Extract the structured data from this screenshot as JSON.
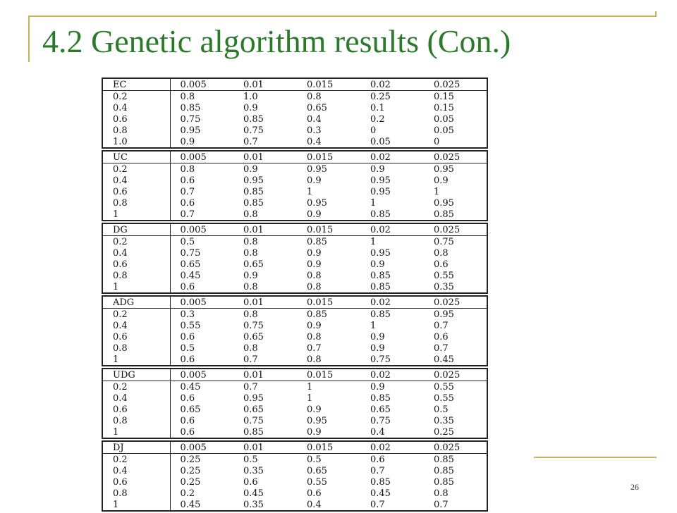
{
  "slide": {
    "title": "4.2 Genetic algorithm results (Con.)",
    "page_number": "26"
  },
  "tables": [
    {
      "header": [
        "EC",
        "0.005",
        "0.01",
        "0.015",
        "0.02",
        "0.025"
      ],
      "rows": [
        [
          "0.2",
          "0.8",
          "1.0",
          "0.8",
          "0.25",
          "0.15"
        ],
        [
          "0.4",
          "0.85",
          "0.9",
          "0.65",
          "0.1",
          "0.15"
        ],
        [
          "0.6",
          "0.75",
          "0.85",
          "0.4",
          "0.2",
          "0.05"
        ],
        [
          "0.8",
          "0.95",
          "0.75",
          "0.3",
          "0",
          "0.05"
        ],
        [
          "1.0",
          "0.9",
          "0.7",
          "0.4",
          "0.05",
          "0"
        ]
      ]
    },
    {
      "header": [
        "UC",
        "0.005",
        "0.01",
        "0.015",
        "0.02",
        "0.025"
      ],
      "rows": [
        [
          "0.2",
          "0.8",
          "0.9",
          "0.95",
          "0.9",
          "0.95"
        ],
        [
          "0.4",
          "0.6",
          "0.95",
          "0.9",
          "0.95",
          "0.9"
        ],
        [
          "0.6",
          "0.7",
          "0.85",
          "1",
          "0.95",
          "1"
        ],
        [
          "0.8",
          "0.6",
          "0.85",
          "0.95",
          "1",
          "0.95"
        ],
        [
          "1",
          "0.7",
          "0.8",
          "0.9",
          "0.85",
          "0.85"
        ]
      ]
    },
    {
      "header": [
        "DG",
        "0.005",
        "0.01",
        "0.015",
        "0.02",
        "0.025"
      ],
      "rows": [
        [
          "0.2",
          "0.5",
          "0.8",
          "0.85",
          "1",
          "0.75"
        ],
        [
          "0.4",
          "0.75",
          "0.8",
          "0.9",
          "0.95",
          "0.8"
        ],
        [
          "0.6",
          "0.65",
          "0.65",
          "0.9",
          "0.9",
          "0.6"
        ],
        [
          "0.8",
          "0.45",
          "0.9",
          "0.8",
          "0.85",
          "0.55"
        ],
        [
          "1",
          "0.6",
          "0.8",
          "0.8",
          "0.85",
          "0.35"
        ]
      ]
    },
    {
      "header": [
        "ADG",
        "0.005",
        "0.01",
        "0.015",
        "0.02",
        "0.025"
      ],
      "rows": [
        [
          "0.2",
          "0.3",
          "0.8",
          "0.85",
          "0.85",
          "0.95"
        ],
        [
          "0.4",
          "0.55",
          "0.75",
          "0.9",
          "1",
          "0.7"
        ],
        [
          "0.6",
          "0.6",
          "0.65",
          "0.8",
          "0.9",
          "0.6"
        ],
        [
          "0.8",
          "0.5",
          "0.8",
          "0.7",
          "0.9",
          "0.7"
        ],
        [
          "1",
          "0.6",
          "0.7",
          "0.8",
          "0.75",
          "0.45"
        ]
      ]
    },
    {
      "header": [
        "UDG",
        "0.005",
        "0.01",
        "0.015",
        "0.02",
        "0.025"
      ],
      "rows": [
        [
          "0.2",
          "0.45",
          "0.7",
          "1",
          "0.9",
          "0.55"
        ],
        [
          "0.4",
          "0.6",
          "0.95",
          "1",
          "0.85",
          "0.55"
        ],
        [
          "0.6",
          "0.65",
          "0.65",
          "0.9",
          "0.65",
          "0.5"
        ],
        [
          "0.8",
          "0.6",
          "0.75",
          "0.95",
          "0.75",
          "0.35"
        ],
        [
          "1",
          "0.6",
          "0.85",
          "0.9",
          "0.4",
          "0.25"
        ]
      ]
    },
    {
      "header": [
        "DJ",
        "0.005",
        "0.01",
        "0.015",
        "0.02",
        "0.025"
      ],
      "rows": [
        [
          "0.2",
          "0.25",
          "0.5",
          "0.5",
          "0.6",
          "0.85"
        ],
        [
          "0.4",
          "0.25",
          "0.35",
          "0.65",
          "0.7",
          "0.85"
        ],
        [
          "0.6",
          "0.25",
          "0.6",
          "0.55",
          "0.85",
          "0.85"
        ],
        [
          "0.8",
          "0.2",
          "0.45",
          "0.6",
          "0.45",
          "0.8"
        ],
        [
          "1",
          "0.45",
          "0.35",
          "0.4",
          "0.7",
          "0.7"
        ]
      ]
    }
  ]
}
